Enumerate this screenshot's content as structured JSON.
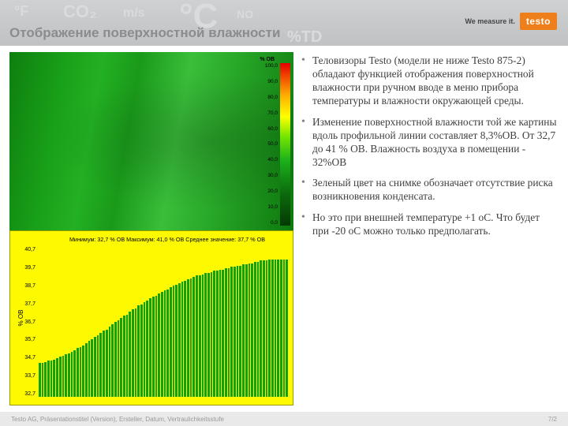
{
  "brand": {
    "tagline": "We measure it.",
    "logo_text": "testo",
    "logo_bg": "#ef7f1a"
  },
  "header": {
    "title": "Отображение поверхностной влажности",
    "ghosts": [
      "°F",
      "CO₂",
      "m/s",
      "°C",
      "NO",
      "%TD"
    ]
  },
  "thermal": {
    "base_color": "#19a019",
    "scale": {
      "header": "% OB",
      "ticks": [
        "100,0",
        "90,0",
        "80,0",
        "70,0",
        "60,0",
        "50,0",
        "40,0",
        "30,0",
        "20,0",
        "10,0",
        "0,0"
      ],
      "stops": [
        {
          "pct": 0,
          "color": "#e60000"
        },
        {
          "pct": 20,
          "color": "#ffae00"
        },
        {
          "pct": 33,
          "color": "#ffff00"
        },
        {
          "pct": 45,
          "color": "#77e600"
        },
        {
          "pct": 60,
          "color": "#1bb11b"
        },
        {
          "pct": 80,
          "color": "#0c6b0c"
        },
        {
          "pct": 100,
          "color": "#043a04"
        }
      ]
    }
  },
  "chart": {
    "type": "bar",
    "label": "Минимум: 32,7 % ОВ Максимум: 41,0 % ОВ Среднее значение: 37,7 % ОВ",
    "ylabel": "% OB",
    "ylim": [
      30,
      42
    ],
    "yticks": [
      "40,7",
      "39,7",
      "38,7",
      "37,7",
      "36,7",
      "35,7",
      "34,7",
      "33,7",
      "32,7"
    ],
    "background_color": "#fdf900",
    "bar_color": "#0fa10f",
    "values": [
      32.7,
      32.7,
      32.8,
      32.9,
      32.9,
      33.0,
      33.1,
      33.2,
      33.3,
      33.4,
      33.5,
      33.6,
      33.7,
      33.9,
      34.0,
      34.1,
      34.3,
      34.5,
      34.6,
      34.8,
      34.9,
      35.1,
      35.3,
      35.4,
      35.6,
      35.8,
      36.0,
      36.1,
      36.3,
      36.5,
      36.6,
      36.8,
      37.0,
      37.1,
      37.3,
      37.4,
      37.6,
      37.7,
      37.9,
      38.0,
      38.1,
      38.3,
      38.4,
      38.5,
      38.6,
      38.8,
      38.9,
      39.0,
      39.1,
      39.2,
      39.3,
      39.4,
      39.5,
      39.6,
      39.7,
      39.7,
      39.8,
      39.9,
      39.9,
      40.0,
      40.1,
      40.1,
      40.2,
      40.2,
      40.3,
      40.3,
      40.4,
      40.4,
      40.5,
      40.5,
      40.6,
      40.6,
      40.7,
      40.7,
      40.8,
      40.8,
      40.9,
      40.9,
      40.9,
      41.0,
      41.0,
      41.0,
      41.0,
      41.0,
      41.0,
      41.0
    ]
  },
  "bullets": [
    "Теловизоры Testo (модели не ниже Testo  875-2) обладают функцией отображения поверхностной влажности при ручном вводе в меню прибора температуры и влажности окружающей среды.",
    " Изменение поверхностной влажности той же картины вдоль профильной линии составляет 8,3%ОВ. От 32,7 до 41 % ОВ. Влажность воздуха в помещении - 32%ОВ",
    "Зеленый цвет  на снимке обозначает отсутствие риска возникновения конденсата.",
    "Но это при внешней температуре +1 оС. Что будет при -20 оС можно только предполагать."
  ],
  "footer": {
    "left": "Testo AG, Präsentationstitel (Version), Ersteller, Datum, Vertraulichkeitsstufe",
    "right": "7/2"
  }
}
